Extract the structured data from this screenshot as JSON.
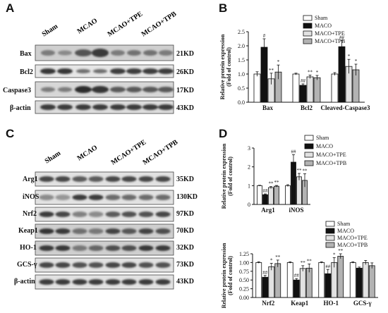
{
  "panel_letters": {
    "a": "A",
    "b": "B",
    "c": "C",
    "d": "D"
  },
  "blot_a": {
    "groups": [
      "Sham",
      "MCAO",
      "MCAO+TPE",
      "MCAO+TPB"
    ],
    "rows": [
      {
        "label": "Bax",
        "size": "21KD"
      },
      {
        "label": "Bcl2",
        "size": "26KD"
      },
      {
        "label": "Caspase3",
        "size": "17KD"
      },
      {
        "label": "β-actin",
        "size": "43KD"
      }
    ]
  },
  "blot_c": {
    "groups": [
      "Sham",
      "MCAO",
      "MCAO+TPE",
      "MCAO+TPB"
    ],
    "rows": [
      {
        "label": "Arg1",
        "size": "35KD"
      },
      {
        "label": "iNOS",
        "size": "130KD"
      },
      {
        "label": "Nrf2",
        "size": "97KD"
      },
      {
        "label": "Keap1",
        "size": "70KD"
      },
      {
        "label": "HO-1",
        "size": "32KD"
      },
      {
        "label": "GCS-γ",
        "size": "73KD"
      },
      {
        "label": "β-actin",
        "size": "43KD"
      }
    ]
  },
  "chart_data": [
    {
      "id": "B",
      "type": "bar",
      "ylabel": "Relative protein expression\n(Fold of control)",
      "ylim": [
        0,
        2.5
      ],
      "yticks": [
        "0.0",
        "0.5",
        "1.0",
        "1.5",
        "2.0",
        "2.5"
      ],
      "categories": [
        "Bax",
        "Bcl2",
        "Cleaved-Caspase3"
      ],
      "series": [
        {
          "name": "Sham",
          "color": "#ffffff",
          "values": [
            1.0,
            1.0,
            1.0
          ],
          "errors": [
            0.08,
            0.03,
            0.05
          ],
          "sig": [
            "",
            "",
            ""
          ]
        },
        {
          "name": "MACO",
          "color": "#111111",
          "values": [
            1.95,
            0.6,
            1.97
          ],
          "errors": [
            0.3,
            0.05,
            0.22
          ],
          "sig": [
            "#",
            "##",
            "##"
          ]
        },
        {
          "name": "MACO+TPE",
          "color": "#e2e2e2",
          "values": [
            0.83,
            0.9,
            1.27
          ],
          "errors": [
            0.2,
            0.06,
            0.25
          ],
          "sig": [
            "**",
            "**",
            "*"
          ]
        },
        {
          "name": "MACO+TPB",
          "color": "#b3b3b3",
          "values": [
            1.07,
            0.87,
            1.15
          ],
          "errors": [
            0.25,
            0.08,
            0.2
          ],
          "sig": [
            "*",
            "*",
            "*"
          ]
        }
      ]
    },
    {
      "id": "D-top",
      "type": "bar",
      "ylabel": "Relative protein expression\n(Fold of control)",
      "ylim": [
        0,
        3
      ],
      "yticks": [
        "0",
        "1",
        "2",
        "3"
      ],
      "categories": [
        "Arg1",
        "iNOS"
      ],
      "series": [
        {
          "name": "Sham",
          "color": "#ffffff",
          "values": [
            1.0,
            1.0
          ],
          "errors": [
            0.02,
            0.05
          ],
          "sig": [
            "",
            ""
          ]
        },
        {
          "name": "MACO",
          "color": "#111111",
          "values": [
            0.52,
            2.25
          ],
          "errors": [
            0.04,
            0.4
          ],
          "sig": [
            "##",
            "##"
          ]
        },
        {
          "name": "MACO+TPE",
          "color": "#e2e2e2",
          "values": [
            0.9,
            1.47
          ],
          "errors": [
            0.05,
            0.18
          ],
          "sig": [
            "**",
            "**"
          ]
        },
        {
          "name": "MACO+TPB",
          "color": "#b3b3b3",
          "values": [
            0.97,
            1.28
          ],
          "errors": [
            0.04,
            0.35
          ],
          "sig": [
            "**",
            "**"
          ]
        }
      ]
    },
    {
      "id": "D-bottom",
      "type": "bar",
      "ylabel": "Relative protein expression\n(Fold of control)",
      "ylim": [
        0,
        1.25
      ],
      "yticks": [
        "0.00",
        "0.25",
        "0.50",
        "0.75",
        "1.00",
        "1.25"
      ],
      "categories": [
        "Nrf2",
        "Keap1",
        "HO-1",
        "GCS-γ"
      ],
      "series": [
        {
          "name": "Sham",
          "color": "#ffffff",
          "values": [
            1.0,
            1.0,
            1.0,
            1.0
          ],
          "errors": [
            0.02,
            0.02,
            0.02,
            0.02
          ],
          "sig": [
            "",
            "",
            "",
            ""
          ]
        },
        {
          "name": "MACO",
          "color": "#111111",
          "values": [
            0.58,
            0.5,
            0.68,
            0.84
          ],
          "errors": [
            0.05,
            0.04,
            0.12,
            0.03
          ],
          "sig": [
            "##",
            "##",
            "##",
            ""
          ]
        },
        {
          "name": "MACO+TPE",
          "color": "#e2e2e2",
          "values": [
            0.88,
            0.83,
            1.0,
            1.0
          ],
          "errors": [
            0.1,
            0.08,
            0.14,
            0.06
          ],
          "sig": [
            "*",
            "**",
            "*",
            ""
          ]
        },
        {
          "name": "MACO+TPB",
          "color": "#b3b3b3",
          "values": [
            0.97,
            0.84,
            1.18,
            0.91
          ],
          "errors": [
            0.1,
            0.12,
            0.07,
            0.08
          ],
          "sig": [
            "**",
            "**",
            "**",
            ""
          ]
        }
      ]
    }
  ]
}
